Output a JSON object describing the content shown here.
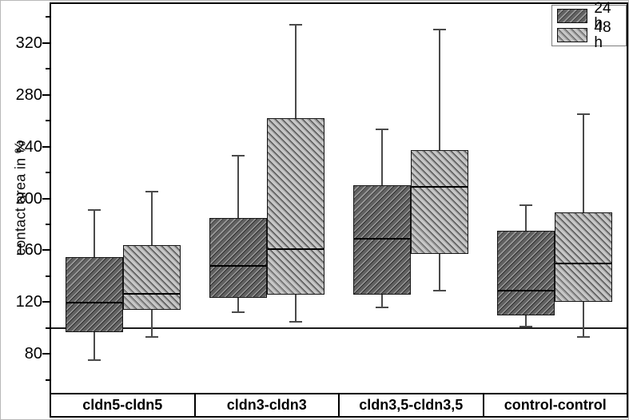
{
  "figure": {
    "background": "#ffffff"
  },
  "chart_data": {
    "type": "boxplot",
    "ylabel": "contact area in %",
    "xlabel": "",
    "ylim": [
      50,
      350
    ],
    "y_major_ticks": [
      80,
      120,
      160,
      200,
      240,
      280,
      320
    ],
    "y_minor_step": 20,
    "reference_line": 100,
    "grid": "off",
    "legend_position": "top-right",
    "categories": [
      "cldn5-cldn5",
      "cldn3-cldn3",
      "cldn3,5-cldn3,5",
      "control-control"
    ],
    "series": [
      {
        "name": "24 h",
        "hatch": "/",
        "color_bg": "#616161",
        "color_stripe": "#9a9a9a",
        "color_stripe_dark": "#2e2e2e",
        "boxes": [
          {
            "whisker_low": 75,
            "q1": 97,
            "median": 120,
            "q3": 155,
            "whisker_high": 191
          },
          {
            "whisker_low": 112,
            "q1": 123,
            "median": 148,
            "q3": 185,
            "whisker_high": 233
          },
          {
            "whisker_low": 116,
            "q1": 126,
            "median": 169,
            "q3": 210,
            "whisker_high": 253
          },
          {
            "whisker_low": 101,
            "q1": 110,
            "median": 129,
            "q3": 175,
            "whisker_high": 195
          }
        ]
      },
      {
        "name": "48 h",
        "hatch": "\\",
        "color_bg": "#c6c6c6",
        "color_stripe": "#969696",
        "color_stripe_dark": "#4d4d4d",
        "boxes": [
          {
            "whisker_low": 93,
            "q1": 114,
            "median": 127,
            "q3": 164,
            "whisker_high": 205
          },
          {
            "whisker_low": 105,
            "q1": 126,
            "median": 161,
            "q3": 262,
            "whisker_high": 334
          },
          {
            "whisker_low": 129,
            "q1": 157,
            "median": 209,
            "q3": 237,
            "whisker_high": 330
          },
          {
            "whisker_low": 93,
            "q1": 120,
            "median": 150,
            "q3": 189,
            "whisker_high": 265
          }
        ]
      }
    ]
  }
}
